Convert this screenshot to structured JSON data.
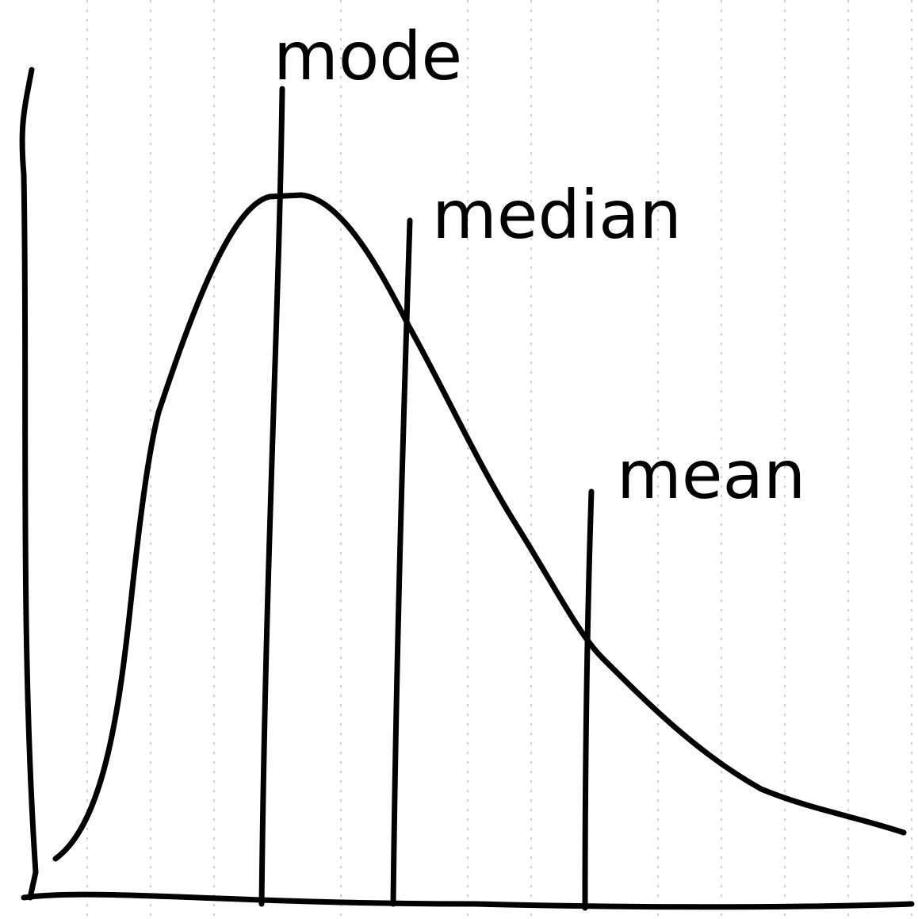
{
  "labels": [
    {
      "text": "mode"
    },
    {
      "text": "median"
    },
    {
      "text": "mean"
    }
  ]
}
